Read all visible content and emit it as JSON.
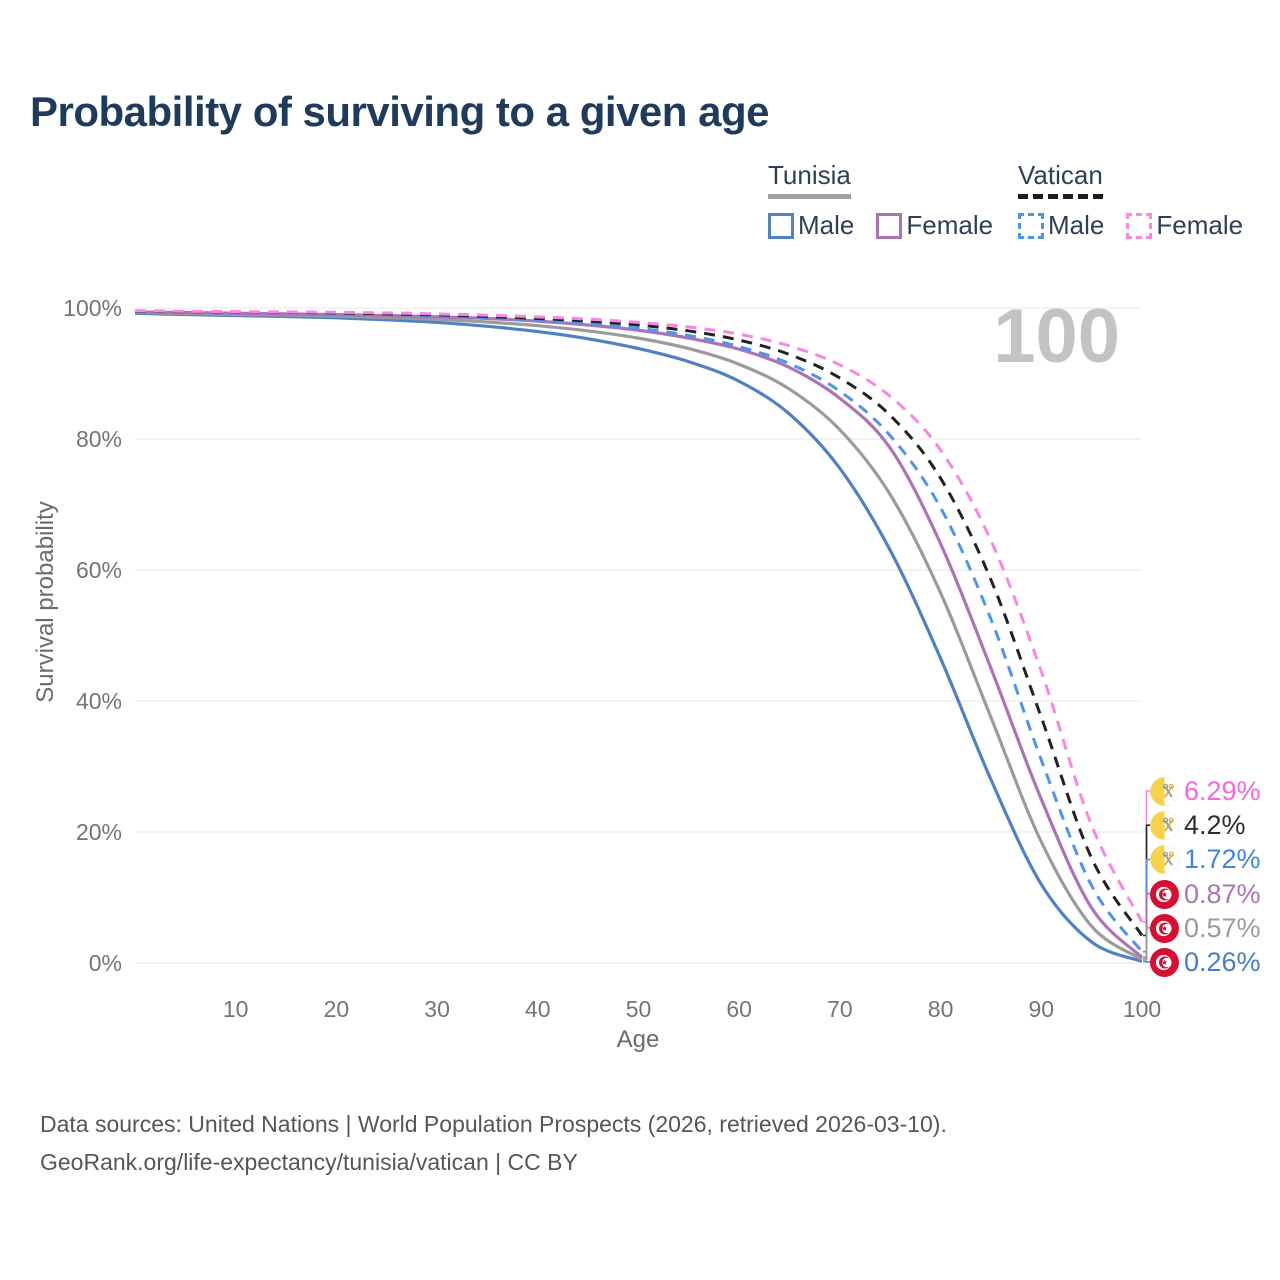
{
  "title": "Probability of surviving to a given age",
  "watermark": {
    "text": "100"
  },
  "legend": {
    "groups": [
      {
        "label": "Tunisia",
        "line_style": "solid",
        "items": [
          {
            "label": "Male",
            "series": "tunisia_male"
          },
          {
            "label": "Female",
            "series": "tunisia_female"
          }
        ]
      },
      {
        "label": "Vatican",
        "line_style": "dashed",
        "items": [
          {
            "label": "Male",
            "series": "vatican_male"
          },
          {
            "label": "Female",
            "series": "vatican_female"
          }
        ]
      }
    ]
  },
  "chart_data": {
    "type": "line",
    "title": "Probability of surviving to a given age",
    "xlabel": "Age",
    "ylabel": "Survival probability",
    "xlim": [
      0,
      100
    ],
    "ylim": [
      0,
      100
    ],
    "x_ticks": [
      10,
      20,
      30,
      40,
      50,
      60,
      70,
      80,
      90,
      100
    ],
    "y_ticks": [
      0,
      20,
      40,
      60,
      80,
      100
    ],
    "y_tick_suffix": "%",
    "grid": "horizontal-only",
    "legend_position": "top-right",
    "age_annotation": "100",
    "ages": [
      0,
      5,
      10,
      15,
      20,
      25,
      30,
      35,
      40,
      45,
      50,
      55,
      60,
      65,
      70,
      75,
      80,
      85,
      90,
      95,
      100
    ],
    "series": [
      {
        "key": "tunisia_male",
        "name": "Tunisia Male",
        "color": "#4e82c4",
        "dash": "solid",
        "values": [
          99.2,
          99.0,
          98.85,
          98.7,
          98.5,
          98.2,
          97.8,
          97.2,
          96.4,
          95.3,
          93.8,
          91.8,
          88.8,
          83.8,
          75.5,
          63.0,
          46.5,
          28.0,
          12.0,
          3.2,
          0.26
        ]
      },
      {
        "key": "tunisia_both",
        "name": "Tunisia (both sexes)",
        "color": "#9b9b9b",
        "dash": "solid",
        "values": [
          99.3,
          99.15,
          99.0,
          98.9,
          98.75,
          98.55,
          98.25,
          97.85,
          97.3,
          96.5,
          95.4,
          93.8,
          91.4,
          87.6,
          81.4,
          71.5,
          56.5,
          37.5,
          18.5,
          5.6,
          0.57
        ]
      },
      {
        "key": "tunisia_female",
        "name": "Tunisia Female",
        "color": "#ab74b4",
        "dash": "solid",
        "values": [
          99.4,
          99.3,
          99.2,
          99.1,
          99.0,
          98.85,
          98.65,
          98.4,
          98.0,
          97.4,
          96.6,
          95.4,
          93.7,
          90.9,
          86.2,
          78.6,
          64.0,
          45.0,
          25.0,
          8.4,
          0.87
        ]
      },
      {
        "key": "vatican_male",
        "name": "Vatican Male",
        "color": "#4d94f2",
        "dash": "dashed",
        "values": [
          99.5,
          99.4,
          99.35,
          99.3,
          99.15,
          99.0,
          98.8,
          98.5,
          98.1,
          97.6,
          96.9,
          95.8,
          94.1,
          91.5,
          87.3,
          80.5,
          69.5,
          52.5,
          31.0,
          11.8,
          1.72
        ]
      },
      {
        "key": "vatican_both",
        "name": "Vatican (both sexes)",
        "color": "#222222",
        "dash": "dashed",
        "values": [
          99.55,
          99.45,
          99.4,
          99.35,
          99.25,
          99.1,
          98.95,
          98.7,
          98.4,
          98.0,
          97.4,
          96.5,
          95.1,
          92.9,
          89.3,
          83.6,
          74.0,
          58.5,
          37.5,
          16.0,
          4.2
        ]
      },
      {
        "key": "vatican_female",
        "name": "Vatican Female",
        "color": "#fa86e4",
        "dash": "dashed",
        "values": [
          99.6,
          99.5,
          99.45,
          99.4,
          99.35,
          99.25,
          99.1,
          98.9,
          98.65,
          98.3,
          97.8,
          97.1,
          96.0,
          94.2,
          91.3,
          86.5,
          78.3,
          64.5,
          44.5,
          21.0,
          6.29
        ]
      }
    ],
    "end_labels": [
      {
        "series": "vatican_female",
        "text": "6.29%",
        "text_color": "#f666dd",
        "flag": "vatican"
      },
      {
        "series": "vatican_both",
        "text": "4.2%",
        "text_color": "#2e2e2e",
        "flag": "vatican"
      },
      {
        "series": "vatican_male",
        "text": "1.72%",
        "text_color": "#3c86e3",
        "flag": "vatican"
      },
      {
        "series": "tunisia_female",
        "text": "0.87%",
        "text_color": "#ab74b4",
        "flag": "tunisia"
      },
      {
        "series": "tunisia_both",
        "text": "0.57%",
        "text_color": "#9b9b9b",
        "flag": "tunisia"
      },
      {
        "series": "tunisia_male",
        "text": "0.26%",
        "text_color": "#4a7cc9",
        "flag": "tunisia"
      }
    ]
  },
  "footer": {
    "line1": "Data sources: United Nations | World Population Prospects (2026, retrieved 2026-03-10).",
    "line2": "GeoRank.org/life-expectancy/tunisia/vatican | CC BY"
  }
}
